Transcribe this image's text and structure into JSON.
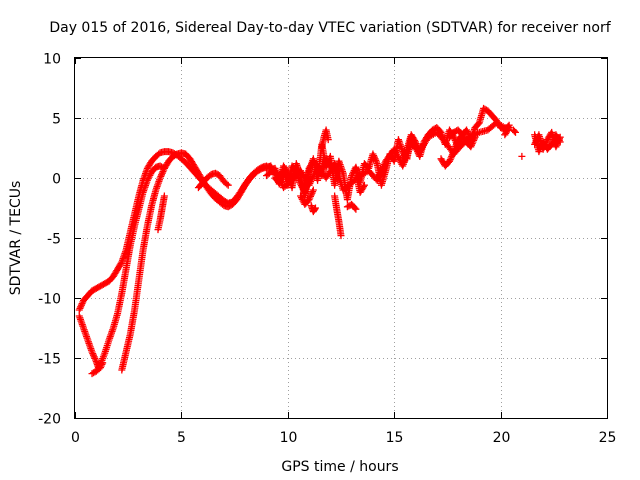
{
  "chart_data": {
    "type": "scatter",
    "title": "Day 015 of 2016, Sidereal Day-to-day VTEC variation (SDTVAR) for receiver norf",
    "xlabel": "GPS time / hours",
    "ylabel": "SDTVAR / TECUs",
    "xlim": [
      0,
      25
    ],
    "ylim": [
      -20,
      10
    ],
    "xticks": [
      0,
      5,
      10,
      15,
      20,
      25
    ],
    "yticks": [
      -20,
      -15,
      -10,
      -5,
      0,
      5,
      10
    ],
    "xtick_labels": [
      "0",
      "5",
      "10",
      "15",
      "20",
      "25"
    ],
    "ytick_labels": [
      "-20",
      "-15",
      "-10",
      "-5",
      "0",
      "5",
      "10"
    ],
    "grid": true,
    "marker": "+",
    "series": [
      {
        "name": "norf",
        "color": "#ff0000",
        "segments": [
          {
            "x": [
              0.2,
              0.3,
              0.4,
              0.6,
              0.8,
              1.0,
              1.2,
              1.4,
              1.6,
              1.8,
              2.0,
              2.2,
              2.4,
              2.6,
              2.8,
              3.0,
              3.2,
              3.4,
              3.6,
              3.8,
              4.0,
              4.2,
              4.4,
              4.6,
              4.8,
              5.0,
              5.2,
              5.4,
              5.6,
              5.8,
              6.0,
              6.2,
              6.4,
              6.6,
              6.8,
              7.0,
              7.2,
              7.4,
              7.6,
              7.8,
              8.0,
              8.2,
              8.4,
              8.6,
              8.8,
              9.0
            ],
            "y": [
              -11.0,
              -10.6,
              -10.2,
              -9.8,
              -9.4,
              -9.2,
              -9.0,
              -8.8,
              -8.6,
              -8.2,
              -7.6,
              -7.0,
              -6.0,
              -4.5,
              -3.0,
              -1.5,
              -0.2,
              0.8,
              1.4,
              1.8,
              2.1,
              2.2,
              2.2,
              2.1,
              1.9,
              1.6,
              1.3,
              0.9,
              0.5,
              0.1,
              -0.3,
              -0.7,
              -1.0,
              -1.3,
              -1.6,
              -1.9,
              -2.1,
              -2.0,
              -1.6,
              -1.1,
              -0.5,
              0.0,
              0.4,
              0.7,
              0.9,
              1.0
            ]
          },
          {
            "x": [
              0.2,
              0.4,
              0.6,
              0.8,
              1.0,
              1.1,
              1.2,
              1.4,
              1.6,
              1.8,
              2.0,
              2.2,
              2.4,
              2.6,
              2.8,
              3.0,
              3.2,
              3.4,
              3.6,
              3.8,
              4.0,
              4.2
            ],
            "y": [
              -11.5,
              -12.5,
              -13.5,
              -14.5,
              -15.3,
              -15.8,
              -15.5,
              -14.6,
              -13.5,
              -12.5,
              -11.3,
              -9.6,
              -7.6,
              -5.6,
              -4.0,
              -2.6,
              -1.2,
              -0.2,
              0.5,
              0.9,
              1.0,
              0.8
            ]
          },
          {
            "x": [
              0.8,
              1.0,
              1.2,
              1.3
            ],
            "y": [
              -16.3,
              -16.1,
              -15.8,
              -15.4
            ]
          },
          {
            "x": [
              2.2,
              2.4,
              2.6,
              2.8,
              3.0,
              3.2,
              3.4,
              3.6,
              3.8,
              4.0,
              4.2,
              4.4,
              4.6,
              4.8,
              5.0,
              5.2,
              5.4,
              5.6,
              5.8,
              6.0,
              6.2,
              6.4,
              6.6,
              6.8,
              7.0,
              7.2,
              7.4,
              7.6,
              7.8,
              8.0,
              8.2,
              8.4,
              8.6,
              8.8,
              9.0,
              9.2
            ],
            "y": [
              -16.0,
              -14.5,
              -13.0,
              -11.0,
              -8.5,
              -6.0,
              -4.0,
              -2.3,
              -1.0,
              0.0,
              0.8,
              1.4,
              1.8,
              2.0,
              2.1,
              2.0,
              1.6,
              1.0,
              0.4,
              -0.2,
              -0.8,
              -1.3,
              -1.7,
              -2.0,
              -2.3,
              -2.4,
              -2.2,
              -1.8,
              -1.2,
              -0.6,
              -0.1,
              0.3,
              0.6,
              0.8,
              0.9,
              1.0
            ]
          },
          {
            "x": [
              3.9,
              4.0,
              4.1,
              4.2
            ],
            "y": [
              -4.3,
              -3.5,
              -2.5,
              -1.5
            ]
          },
          {
            "x": [
              5.8,
              6.0,
              6.2,
              6.4,
              6.6,
              6.8,
              7.0,
              7.2
            ],
            "y": [
              -0.8,
              -0.4,
              0.0,
              0.3,
              0.4,
              0.2,
              -0.3,
              -0.6
            ]
          },
          {
            "x": [
              9.0,
              9.2,
              9.4,
              9.6,
              9.8,
              10.0,
              10.2,
              10.4,
              10.6,
              10.8,
              11.0,
              11.2,
              11.4,
              11.6,
              11.8,
              12.0,
              12.2,
              12.4,
              12.6,
              12.8,
              13.0,
              13.2,
              13.4,
              13.6,
              13.8,
              14.0,
              14.2,
              14.4,
              14.6,
              14.8,
              15.0,
              15.2,
              15.4,
              15.6,
              15.8,
              16.0,
              16.2,
              16.4,
              16.6,
              16.8,
              17.0,
              17.2,
              17.4,
              17.6,
              17.8,
              18.0,
              18.2,
              18.4,
              18.6,
              18.8,
              19.0,
              19.2,
              19.4,
              19.6,
              19.8,
              20.0,
              20.2,
              20.4
            ],
            "y": [
              0.8,
              1.0,
              0.3,
              -0.5,
              1.0,
              0.4,
              -0.8,
              1.2,
              0.2,
              -1.6,
              0.6,
              1.6,
              -0.2,
              2.8,
              0.9,
              1.8,
              -0.6,
              1.4,
              0.4,
              -1.8,
              0.2,
              0.9,
              -0.4,
              1.2,
              0.8,
              2.0,
              1.2,
              -0.6,
              0.6,
              2.0,
              1.4,
              3.2,
              2.2,
              1.6,
              3.4,
              2.6,
              1.8,
              3.0,
              3.6,
              4.0,
              4.2,
              3.8,
              2.8,
              4.0,
              3.4,
              2.6,
              3.6,
              4.0,
              3.2,
              4.2,
              4.6,
              5.8,
              5.6,
              5.2,
              4.8,
              4.2,
              4.0,
              4.4
            ]
          },
          {
            "x": [
              9.0,
              9.4,
              9.8,
              10.2,
              10.6,
              11.0,
              11.4,
              11.8,
              12.2,
              12.6,
              13.0,
              13.4,
              13.8,
              14.2,
              14.6,
              15.0,
              15.4,
              15.8,
              16.2,
              16.6,
              17.0,
              17.4,
              17.8,
              18.2,
              18.6,
              19.0,
              19.4,
              19.8,
              20.2
            ],
            "y": [
              0.2,
              0.8,
              -0.8,
              -0.2,
              0.6,
              -0.6,
              1.0,
              0.0,
              1.2,
              -1.0,
              -0.4,
              0.2,
              0.6,
              -0.2,
              1.4,
              2.4,
              1.0,
              2.8,
              2.2,
              3.4,
              3.8,
              3.0,
              2.0,
              2.8,
              3.4,
              3.8,
              4.0,
              4.6,
              4.2
            ]
          },
          {
            "x": [
              9.4,
              9.6,
              9.8,
              10.0,
              10.2,
              10.4,
              10.6,
              10.8,
              11.0,
              11.2,
              11.4,
              11.6,
              11.8,
              12.0
            ],
            "y": [
              0.0,
              -0.4,
              0.6,
              -0.6,
              1.0,
              0.5,
              -0.5,
              -1.2,
              0.8,
              1.4,
              0.9,
              0.2,
              1.6,
              1.0
            ]
          },
          {
            "x": [
              10.6,
              10.8,
              11.0,
              11.2
            ],
            "y": [
              -1.5,
              -2.2,
              -1.8,
              -1.0
            ]
          },
          {
            "x": [
              11.1,
              11.2,
              11.3
            ],
            "y": [
              -2.3,
              -2.8,
              -2.5
            ]
          },
          {
            "x": [
              11.6,
              11.7,
              11.8,
              11.9
            ],
            "y": [
              2.6,
              3.4,
              4.0,
              3.2
            ]
          },
          {
            "x": [
              12.2,
              12.3,
              12.4,
              12.5
            ],
            "y": [
              -1.5,
              -2.6,
              -3.6,
              -4.8
            ]
          },
          {
            "x": [
              12.8,
              13.0,
              13.2
            ],
            "y": [
              -2.4,
              -2.2,
              -2.6
            ]
          },
          {
            "x": [
              13.2,
              13.3,
              13.4,
              13.6
            ],
            "y": [
              0.8,
              -0.4,
              -1.2,
              -0.6
            ]
          },
          {
            "x": [
              15.4,
              15.6,
              15.8,
              16.0,
              16.2
            ],
            "y": [
              1.6,
              2.4,
              3.6,
              3.0,
              2.2
            ]
          },
          {
            "x": [
              17.2,
              17.4,
              17.6,
              17.8,
              18.0
            ],
            "y": [
              1.6,
              1.0,
              1.4,
              2.2,
              3.2
            ]
          },
          {
            "x": [
              17.6,
              17.8,
              18.0,
              18.2
            ],
            "y": [
              3.4,
              3.8,
              4.0,
              3.6
            ]
          },
          {
            "x": [
              18.0,
              18.2,
              18.4,
              18.6,
              18.8
            ],
            "y": [
              3.0,
              3.6,
              3.0,
              2.6,
              3.4
            ]
          },
          {
            "x": [
              20.2,
              20.4
            ],
            "y": [
              3.6,
              4.2
            ]
          },
          {
            "x": [
              20.6,
              20.7
            ],
            "y": [
              4.0,
              3.8
            ]
          },
          {
            "x": [
              21.0
            ],
            "y": [
              1.8
            ]
          },
          {
            "x": [
              21.6,
              21.8,
              22.0,
              22.2,
              22.4,
              22.6,
              22.8
            ],
            "y": [
              2.8,
              3.6,
              2.4,
              3.2,
              3.8,
              2.6,
              3.4
            ]
          },
          {
            "x": [
              21.6,
              21.8,
              22.0,
              22.2,
              22.4,
              22.6,
              22.8
            ],
            "y": [
              3.6,
              2.2,
              3.0,
              2.4,
              2.8,
              3.6,
              3.0
            ]
          }
        ]
      }
    ]
  }
}
